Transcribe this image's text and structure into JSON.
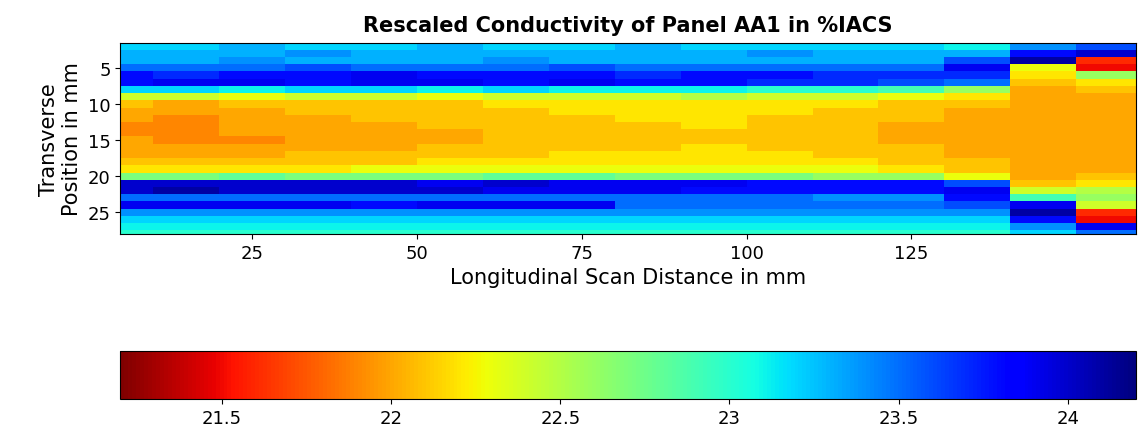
{
  "chart_data": {
    "type": "heatmap",
    "title": "Rescaled Conductivity of Panel AA1 in %IACS",
    "x_label": "Longitudinal Scan Distance in mm",
    "y_label": "Transverse\nPosition in mm",
    "xlim": [
      5,
      159
    ],
    "xticks": [
      25,
      50,
      75,
      100,
      125
    ],
    "ylim": [
      28,
      1.5
    ],
    "yticks": [
      5,
      10,
      15,
      20,
      25
    ],
    "x": [
      5,
      15,
      25,
      35,
      45,
      55,
      65,
      75,
      85,
      95,
      105,
      115,
      125,
      135,
      145,
      155
    ],
    "y": [
      2,
      3,
      4,
      5,
      6,
      7,
      8,
      9,
      10,
      11,
      12,
      13,
      14,
      15,
      16,
      17,
      18,
      19,
      20,
      21,
      22,
      23,
      24,
      25,
      26,
      27,
      28
    ],
    "cells": [
      [
        23.2,
        23.2,
        23.3,
        23.2,
        23.2,
        23.3,
        23.2,
        23.2,
        23.3,
        23.2,
        23.2,
        23.2,
        23.2,
        23.1,
        23.4,
        23.6
      ],
      [
        23.3,
        23.3,
        23.3,
        23.4,
        23.3,
        23.3,
        23.3,
        23.3,
        23.3,
        23.3,
        23.4,
        23.3,
        23.3,
        23.3,
        23.8,
        24.0
      ],
      [
        23.3,
        23.3,
        23.4,
        23.3,
        23.3,
        23.3,
        23.4,
        23.3,
        23.3,
        23.3,
        23.3,
        23.3,
        23.3,
        23.6,
        24.1,
        21.6
      ],
      [
        23.5,
        23.5,
        23.5,
        23.6,
        23.5,
        23.5,
        23.5,
        23.6,
        23.5,
        23.5,
        23.5,
        23.5,
        23.5,
        23.9,
        22.3,
        21.5
      ],
      [
        23.8,
        23.7,
        23.8,
        23.8,
        23.9,
        23.8,
        23.8,
        23.8,
        23.7,
        23.8,
        23.8,
        23.7,
        23.7,
        23.7,
        22.2,
        22.6
      ],
      [
        23.8,
        23.9,
        23.9,
        23.8,
        23.9,
        23.9,
        23.8,
        23.9,
        23.8,
        23.8,
        23.7,
        23.7,
        23.6,
        23.5,
        22.1,
        22.2
      ],
      [
        23.2,
        23.2,
        23.1,
        23.2,
        23.2,
        23.1,
        23.2,
        23.1,
        23.1,
        23.1,
        23.0,
        23.0,
        22.9,
        22.6,
        22.0,
        22.1
      ],
      [
        22.4,
        22.4,
        22.3,
        22.4,
        22.4,
        22.3,
        22.4,
        22.4,
        22.4,
        22.5,
        22.4,
        22.4,
        22.3,
        22.2,
        22.0,
        22.0
      ],
      [
        22.1,
        22.0,
        22.1,
        22.1,
        22.1,
        22.1,
        22.2,
        22.2,
        22.2,
        22.2,
        22.2,
        22.2,
        22.1,
        22.1,
        22.0,
        22.0
      ],
      [
        22.0,
        22.0,
        22.0,
        22.1,
        22.1,
        22.1,
        22.1,
        22.2,
        22.2,
        22.2,
        22.2,
        22.1,
        22.1,
        22.0,
        22.0,
        22.0
      ],
      [
        22.0,
        21.9,
        22.0,
        22.0,
        22.1,
        22.1,
        22.1,
        22.1,
        22.2,
        22.2,
        22.1,
        22.1,
        22.1,
        22.0,
        22.0,
        22.0
      ],
      [
        21.9,
        21.9,
        22.0,
        22.0,
        22.0,
        22.1,
        22.1,
        22.1,
        22.1,
        22.2,
        22.1,
        22.1,
        22.0,
        22.0,
        22.0,
        22.0
      ],
      [
        21.9,
        21.9,
        22.0,
        22.0,
        22.0,
        22.0,
        22.1,
        22.1,
        22.1,
        22.1,
        22.1,
        22.1,
        22.0,
        22.0,
        22.0,
        22.0
      ],
      [
        22.0,
        21.9,
        21.9,
        22.0,
        22.0,
        22.0,
        22.1,
        22.1,
        22.1,
        22.1,
        22.1,
        22.1,
        22.0,
        22.0,
        22.0,
        22.0
      ],
      [
        22.0,
        22.0,
        22.0,
        22.0,
        22.0,
        22.1,
        22.1,
        22.1,
        22.1,
        22.2,
        22.1,
        22.1,
        22.1,
        22.0,
        22.0,
        22.0
      ],
      [
        22.0,
        22.0,
        22.0,
        22.1,
        22.1,
        22.1,
        22.1,
        22.2,
        22.2,
        22.2,
        22.2,
        22.1,
        22.1,
        22.0,
        22.0,
        22.0
      ],
      [
        22.1,
        22.1,
        22.1,
        22.1,
        22.1,
        22.2,
        22.2,
        22.2,
        22.2,
        22.2,
        22.2,
        22.2,
        22.1,
        22.1,
        22.0,
        22.0
      ],
      [
        22.2,
        22.2,
        22.2,
        22.2,
        22.3,
        22.3,
        22.3,
        22.3,
        22.3,
        22.3,
        22.3,
        22.3,
        22.2,
        22.1,
        22.0,
        22.0
      ],
      [
        22.7,
        22.7,
        22.8,
        22.7,
        22.7,
        22.7,
        22.8,
        22.8,
        22.7,
        22.7,
        22.7,
        22.6,
        22.6,
        22.3,
        22.0,
        22.1
      ],
      [
        24.0,
        24.0,
        24.0,
        24.0,
        24.0,
        23.9,
        24.0,
        23.9,
        23.9,
        23.9,
        23.8,
        23.8,
        23.8,
        23.6,
        22.1,
        22.2
      ],
      [
        24.0,
        24.1,
        24.0,
        24.0,
        24.0,
        24.0,
        23.9,
        23.9,
        23.9,
        23.8,
        23.8,
        23.8,
        23.8,
        23.9,
        22.4,
        22.5
      ],
      [
        23.5,
        23.5,
        23.5,
        23.5,
        23.5,
        23.5,
        23.5,
        23.5,
        23.5,
        23.5,
        23.5,
        23.4,
        23.4,
        23.8,
        22.9,
        22.6
      ],
      [
        23.9,
        23.9,
        23.9,
        23.9,
        23.8,
        23.9,
        23.9,
        23.9,
        23.5,
        23.5,
        23.5,
        23.5,
        23.5,
        23.6,
        23.9,
        22.4
      ],
      [
        23.4,
        23.4,
        23.4,
        23.4,
        23.4,
        23.4,
        23.4,
        23.4,
        23.4,
        23.4,
        23.4,
        23.4,
        23.4,
        23.4,
        24.1,
        21.6
      ],
      [
        23.2,
        23.2,
        23.2,
        23.2,
        23.2,
        23.2,
        23.2,
        23.2,
        23.2,
        23.2,
        23.2,
        23.2,
        23.2,
        23.2,
        23.8,
        21.5
      ],
      [
        23.1,
        23.1,
        23.1,
        23.1,
        23.1,
        23.1,
        23.1,
        23.1,
        23.1,
        23.1,
        23.1,
        23.1,
        23.1,
        23.1,
        23.4,
        23.9
      ],
      [
        23.0,
        23.0,
        23.0,
        23.0,
        23.0,
        23.0,
        23.0,
        23.0,
        23.0,
        23.0,
        23.0,
        23.0,
        23.0,
        23.0,
        23.2,
        23.5
      ]
    ],
    "colorbar_range": [
      21.2,
      24.2
    ],
    "colorbar_ticks": [
      21.5,
      22,
      22.5,
      23,
      23.5,
      24
    ]
  }
}
